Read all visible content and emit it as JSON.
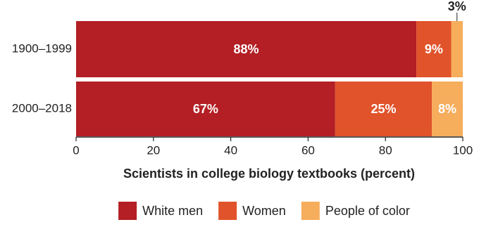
{
  "chart_data": {
    "type": "stacked-bar-horizontal",
    "x_label": "Scientists in college biology textbooks (percent)",
    "categories": [
      "1900–1999",
      "2000–2018"
    ],
    "series": [
      {
        "name": "White men",
        "color": "#b31f24",
        "values": [
          88,
          67
        ],
        "value_labels": [
          "88%",
          "67%"
        ]
      },
      {
        "name": "Women",
        "color": "#e1532a",
        "values": [
          9,
          25
        ],
        "value_labels": [
          "9%",
          "25%"
        ]
      },
      {
        "name": "People of color",
        "color": "#f6ad5c",
        "values": [
          3,
          8
        ],
        "value_labels": [
          "3%",
          "8%"
        ]
      }
    ],
    "xlim": [
      0,
      100
    ],
    "xticks": [
      0,
      20,
      40,
      60,
      80,
      100
    ],
    "legend": "bottom"
  }
}
